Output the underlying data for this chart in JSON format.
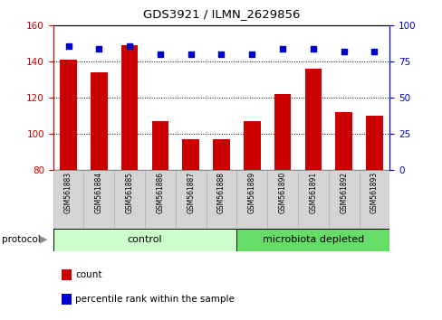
{
  "title": "GDS3921 / ILMN_2629856",
  "categories": [
    "GSM561883",
    "GSM561884",
    "GSM561885",
    "GSM561886",
    "GSM561887",
    "GSM561888",
    "GSM561889",
    "GSM561890",
    "GSM561891",
    "GSM561892",
    "GSM561893"
  ],
  "bar_values": [
    141,
    134,
    149,
    107,
    97,
    97,
    107,
    122,
    136,
    112,
    110
  ],
  "percentile_values": [
    86,
    84,
    86,
    80,
    80,
    80,
    80,
    84,
    84,
    82,
    82
  ],
  "bar_color": "#cc0000",
  "dot_color": "#0000cc",
  "ylim_left": [
    80,
    160
  ],
  "ylim_right": [
    0,
    100
  ],
  "yticks_left": [
    80,
    100,
    120,
    140,
    160
  ],
  "yticks_right": [
    0,
    25,
    50,
    75,
    100
  ],
  "n_control": 6,
  "n_microbiota": 5,
  "control_label": "control",
  "microbiota_label": "microbiota depleted",
  "protocol_label": "protocol",
  "legend_count": "count",
  "legend_percentile": "percentile rank within the sample",
  "control_color": "#ccffcc",
  "microbiota_color": "#66dd66",
  "label_bg_color": "#d8d8d8",
  "label_bg_color2": "#e0e0e0"
}
